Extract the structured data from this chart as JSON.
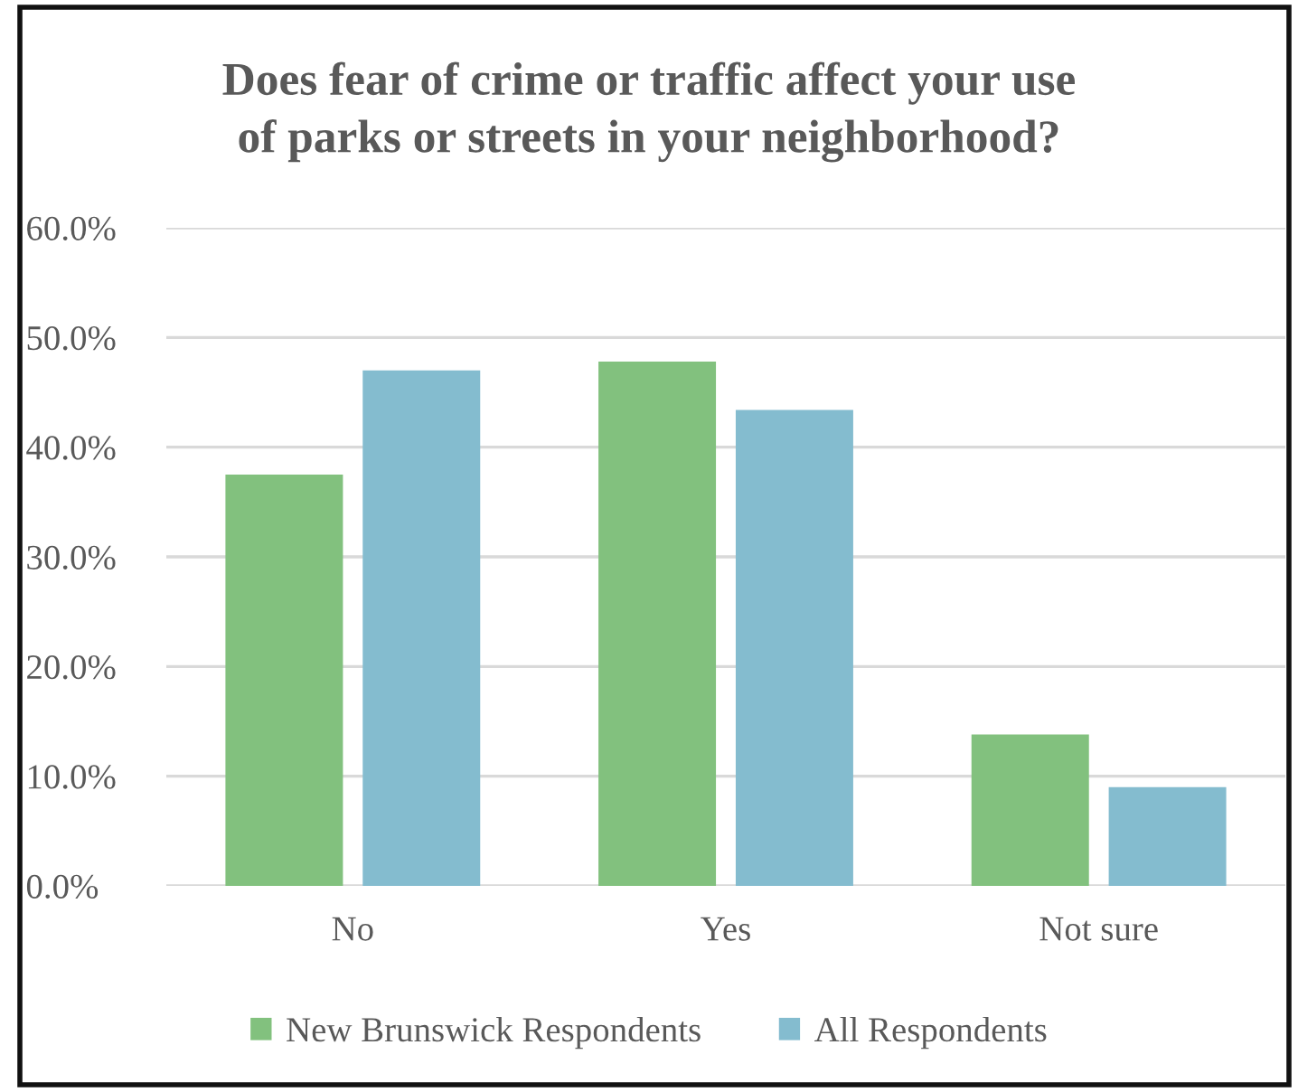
{
  "chart_data": {
    "type": "bar",
    "title": "Does fear of crime or traffic affect your use\nof parks or streets in your neighborhood?",
    "categories": [
      "No",
      "Yes",
      "Not sure"
    ],
    "series": [
      {
        "name": "New Brunswick Respondents",
        "color": "#82c17e",
        "values": [
          37.5,
          47.8,
          13.8
        ]
      },
      {
        "name": "All Respondents",
        "color": "#84bccf",
        "values": [
          47.0,
          43.4,
          9.0
        ]
      }
    ],
    "ylim": [
      0,
      60
    ],
    "yticks": [
      {
        "value": 0,
        "label": "0.0%"
      },
      {
        "value": 10,
        "label": "10.0%"
      },
      {
        "value": 20,
        "label": "20.0%"
      },
      {
        "value": 30,
        "label": "30.0%"
      },
      {
        "value": 40,
        "label": "40.0%"
      },
      {
        "value": 50,
        "label": "50.0%"
      },
      {
        "value": 60,
        "label": "60.0%"
      }
    ],
    "grid": "y",
    "legend": "bottom"
  }
}
